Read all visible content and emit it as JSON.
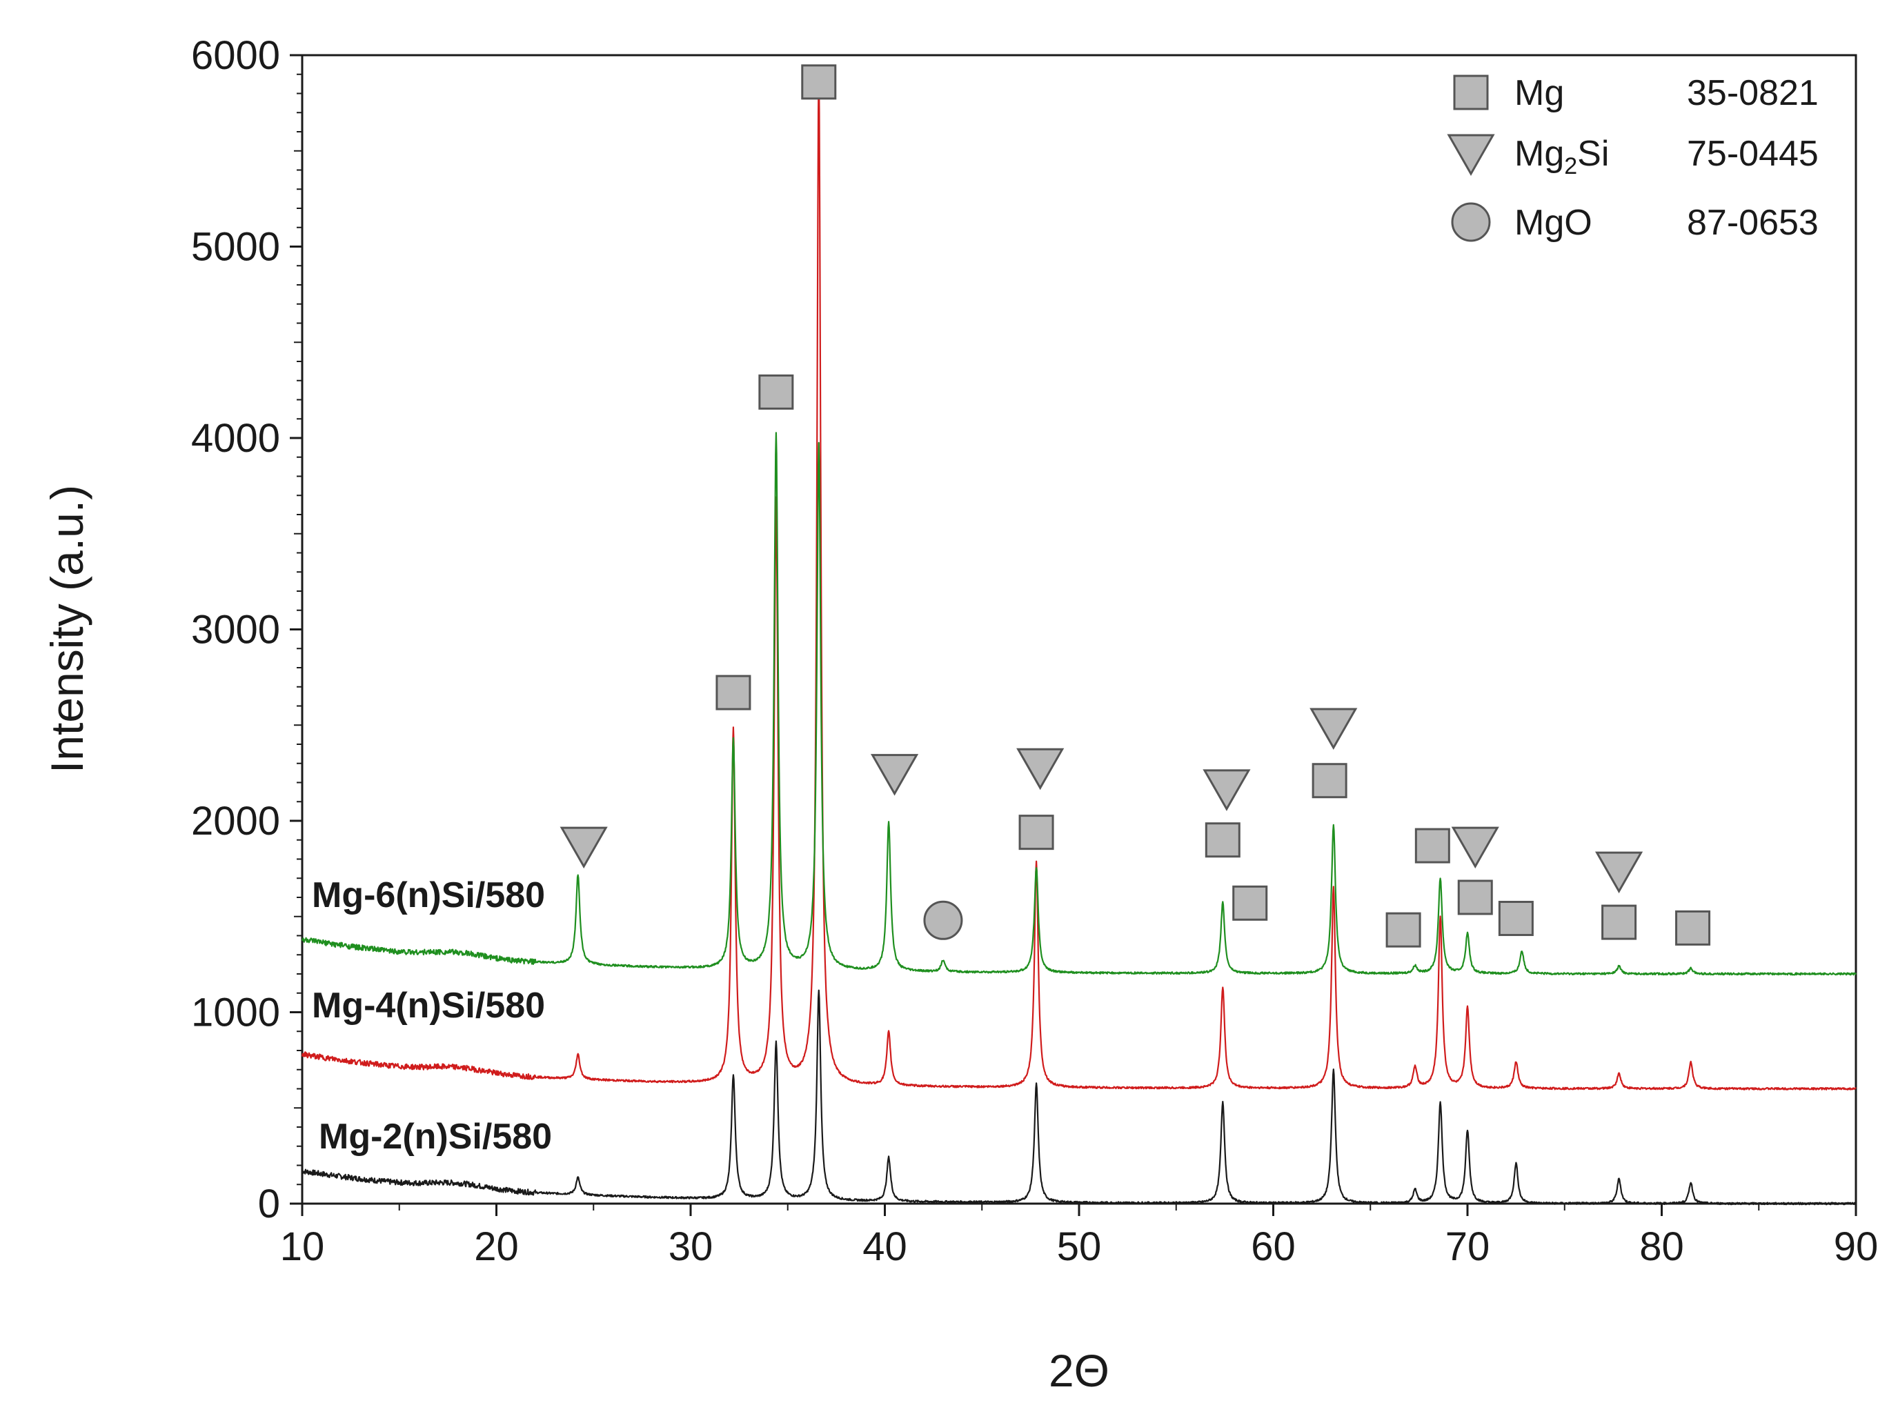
{
  "chart_data": {
    "type": "line",
    "title": "",
    "xlabel": "2Θ",
    "ylabel": "Intensity (a.u.)",
    "xlim": [
      10,
      90
    ],
    "ylim": [
      0,
      6000
    ],
    "xticks": [
      "10",
      "20",
      "30",
      "40",
      "50",
      "60",
      "70",
      "80",
      "90"
    ],
    "yticks": [
      "0",
      "1000",
      "2000",
      "3000",
      "4000",
      "5000",
      "6000"
    ],
    "grid": false,
    "colors": {
      "Mg-2(n)Si/580": "#1a1a1a",
      "Mg-4(n)Si/580": "#d01c1c",
      "Mg-6(n)Si/580": "#1f8f1f",
      "marker_fill": "#b8b8b8",
      "marker_stroke": "#555555"
    },
    "peak_width": 0.12,
    "series": [
      {
        "name": "Mg-2(n)Si/580",
        "offset": 0,
        "baseline_start": 170,
        "peaks": [
          [
            24.2,
            90
          ],
          [
            32.2,
            650
          ],
          [
            34.4,
            820
          ],
          [
            36.6,
            1100
          ],
          [
            40.2,
            230
          ],
          [
            47.8,
            620
          ],
          [
            57.4,
            530
          ],
          [
            63.1,
            700
          ],
          [
            67.3,
            70
          ],
          [
            68.6,
            530
          ],
          [
            70.0,
            380
          ],
          [
            72.5,
            210
          ],
          [
            77.8,
            130
          ],
          [
            81.5,
            110
          ]
        ]
      },
      {
        "name": "Mg-4(n)Si/580",
        "offset": 600,
        "baseline_start": 180,
        "peaks": [
          [
            24.2,
            130
          ],
          [
            32.2,
            1850
          ],
          [
            34.4,
            3050
          ],
          [
            36.6,
            5300
          ],
          [
            40.2,
            280
          ],
          [
            47.8,
            1180
          ],
          [
            57.4,
            530
          ],
          [
            63.1,
            1050
          ],
          [
            67.3,
            110
          ],
          [
            68.6,
            900
          ],
          [
            70.0,
            420
          ],
          [
            72.5,
            140
          ],
          [
            77.8,
            80
          ],
          [
            81.5,
            140
          ]
        ]
      },
      {
        "name": "Mg-6(n)Si/580",
        "offset": 1200,
        "baseline_start": 180,
        "peaks": [
          [
            24.2,
            470
          ],
          [
            32.2,
            1200
          ],
          [
            34.4,
            2800
          ],
          [
            36.6,
            2750
          ],
          [
            40.2,
            780
          ],
          [
            43.0,
            60
          ],
          [
            47.8,
            550
          ],
          [
            57.4,
            370
          ],
          [
            63.1,
            780
          ],
          [
            67.3,
            40
          ],
          [
            68.6,
            500
          ],
          [
            70.0,
            210
          ],
          [
            72.8,
            120
          ],
          [
            77.8,
            40
          ],
          [
            81.5,
            30
          ]
        ]
      }
    ],
    "phase_markers": [
      {
        "phase": "Mg",
        "shape": "square",
        "x": 32.2,
        "y": 2670
      },
      {
        "phase": "Mg",
        "shape": "square",
        "x": 34.4,
        "y": 4240
      },
      {
        "phase": "Mg",
        "shape": "square",
        "x": 36.6,
        "y": 5860
      },
      {
        "phase": "Mg",
        "shape": "square",
        "x": 47.8,
        "y": 1940
      },
      {
        "phase": "Mg",
        "shape": "square",
        "x": 57.4,
        "y": 1900
      },
      {
        "phase": "Mg",
        "shape": "square",
        "x": 58.8,
        "y": 1570
      },
      {
        "phase": "Mg",
        "shape": "square",
        "x": 62.9,
        "y": 2210
      },
      {
        "phase": "Mg",
        "shape": "square",
        "x": 66.7,
        "y": 1430
      },
      {
        "phase": "Mg",
        "shape": "square",
        "x": 68.2,
        "y": 1870
      },
      {
        "phase": "Mg",
        "shape": "square",
        "x": 70.4,
        "y": 1600
      },
      {
        "phase": "Mg",
        "shape": "square",
        "x": 72.5,
        "y": 1490
      },
      {
        "phase": "Mg",
        "shape": "square",
        "x": 77.8,
        "y": 1470
      },
      {
        "phase": "Mg",
        "shape": "square",
        "x": 81.6,
        "y": 1440
      },
      {
        "phase": "Mg2Si",
        "shape": "triangle",
        "x": 24.5,
        "y": 1870
      },
      {
        "phase": "Mg2Si",
        "shape": "triangle",
        "x": 40.5,
        "y": 2250
      },
      {
        "phase": "Mg2Si",
        "shape": "triangle",
        "x": 48.0,
        "y": 2280
      },
      {
        "phase": "Mg2Si",
        "shape": "triangle",
        "x": 57.6,
        "y": 2170
      },
      {
        "phase": "Mg2Si",
        "shape": "triangle",
        "x": 63.1,
        "y": 2490
      },
      {
        "phase": "Mg2Si",
        "shape": "triangle",
        "x": 70.4,
        "y": 1870
      },
      {
        "phase": "Mg2Si",
        "shape": "triangle",
        "x": 77.8,
        "y": 1740
      },
      {
        "phase": "MgO",
        "shape": "circle",
        "x": 43.0,
        "y": 1480
      }
    ],
    "legend": {
      "placement": "top-right",
      "entries": [
        {
          "shape": "square",
          "label": "Mg",
          "label_sub": "",
          "label_tail": "",
          "pdf": "35-0821"
        },
        {
          "shape": "triangle",
          "label": "Mg",
          "label_sub": "2",
          "label_tail": "Si",
          "pdf": "75-0445"
        },
        {
          "shape": "circle",
          "label": "MgO",
          "label_sub": "",
          "label_tail": "",
          "pdf": "87-0653"
        }
      ]
    }
  }
}
